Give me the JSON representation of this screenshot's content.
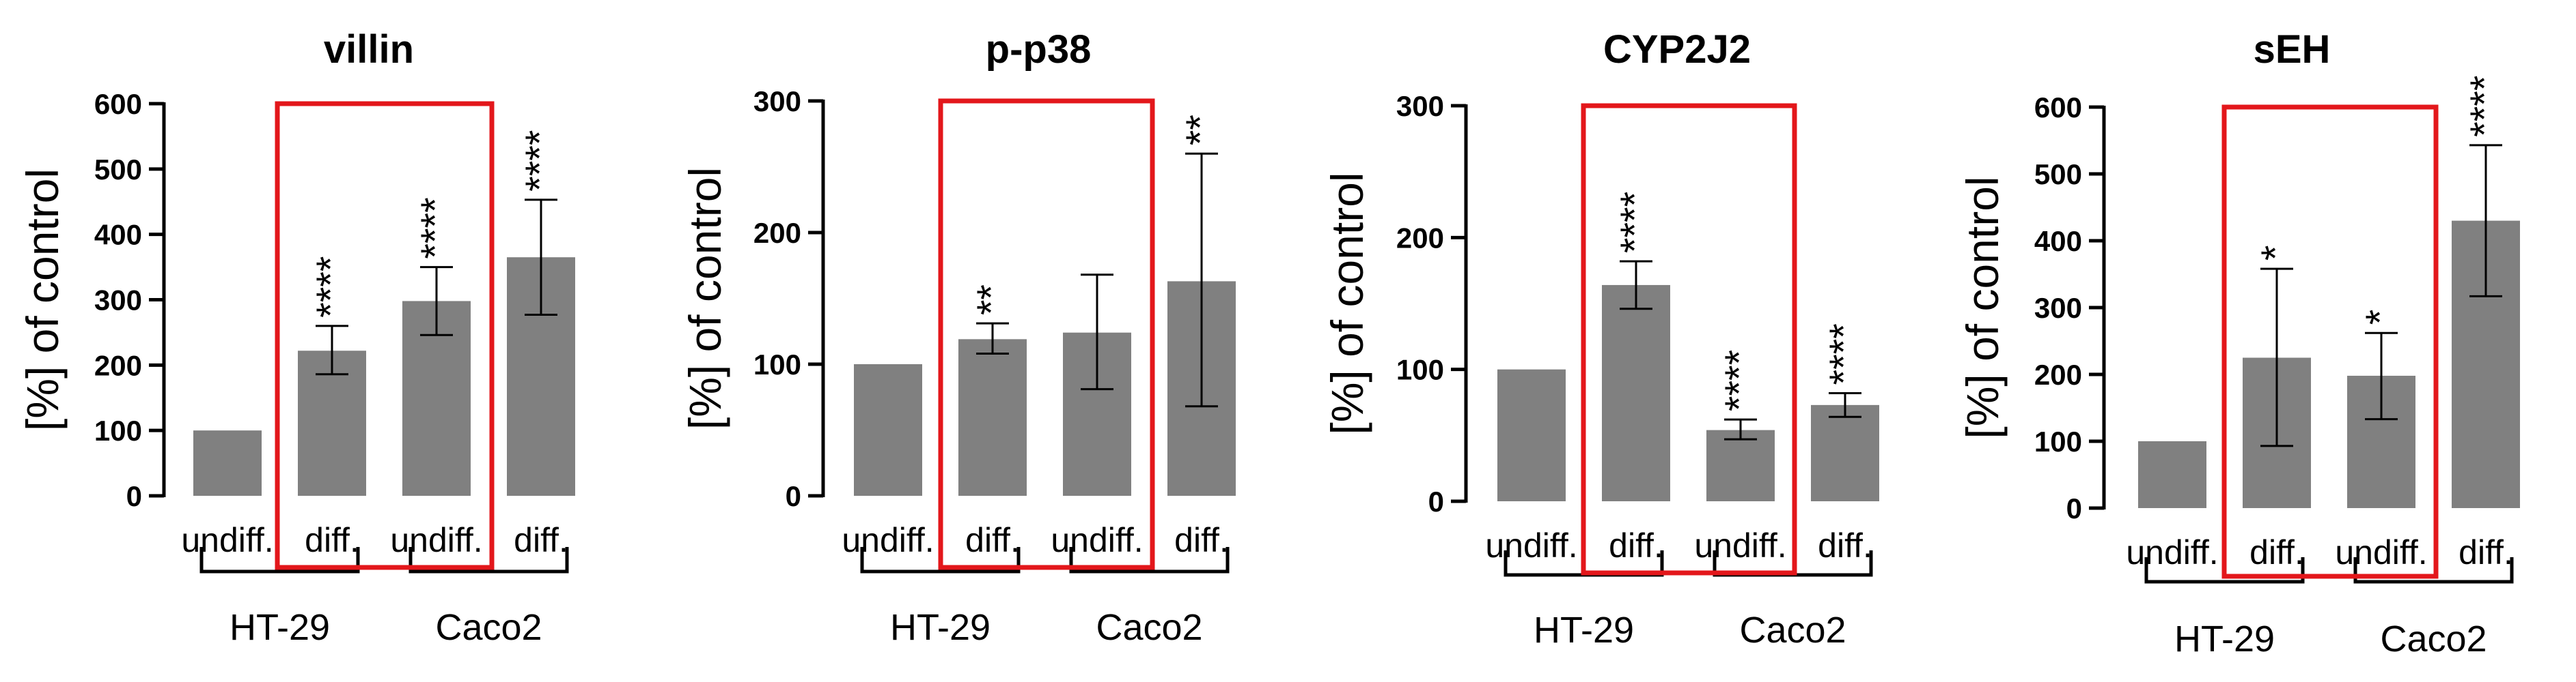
{
  "chart_data": [
    {
      "type": "bar",
      "title": "villin",
      "ylabel": "[%] of control",
      "ylim": [
        0,
        600
      ],
      "yticks": [
        "0",
        "100",
        "200",
        "300",
        "400",
        "500",
        "600"
      ],
      "categories": [
        "undiff.",
        "diff.",
        "undiff.",
        "diff."
      ],
      "groups": [
        {
          "name": "HT-29",
          "span": [
            0,
            1
          ]
        },
        {
          "name": "Caco2",
          "span": [
            2,
            3
          ]
        }
      ],
      "values": [
        100,
        222,
        298,
        365
      ],
      "errors": [
        [
          100,
          100
        ],
        [
          186,
          260
        ],
        [
          246,
          350
        ],
        [
          277,
          453
        ]
      ],
      "significance": [
        "",
        "****",
        "****",
        "****"
      ],
      "highlight": [
        1,
        2
      ]
    },
    {
      "type": "bar",
      "title": "p-p38",
      "ylabel": "[%] of control",
      "ylim": [
        0,
        300
      ],
      "yticks": [
        "0",
        "100",
        "200",
        "300"
      ],
      "categories": [
        "undiff.",
        "diff.",
        "undiff.",
        "diff."
      ],
      "groups": [
        {
          "name": "HT-29",
          "span": [
            0,
            1
          ]
        },
        {
          "name": "Caco2",
          "span": [
            2,
            3
          ]
        }
      ],
      "values": [
        100,
        119,
        124,
        163
      ],
      "errors": [
        [
          100,
          100
        ],
        [
          108,
          131
        ],
        [
          81,
          168
        ],
        [
          68,
          260
        ]
      ],
      "significance": [
        "",
        "**",
        "",
        "**"
      ],
      "highlight": [
        1,
        2
      ]
    },
    {
      "type": "bar",
      "title": "CYP2J2",
      "ylabel": "[%] of control",
      "ylim": [
        0,
        300
      ],
      "yticks": [
        "0",
        "100",
        "200",
        "300"
      ],
      "categories": [
        "undiff.",
        "diff.",
        "undiff.",
        "diff."
      ],
      "groups": [
        {
          "name": "HT-29",
          "span": [
            0,
            1
          ]
        },
        {
          "name": "Caco2",
          "span": [
            2,
            3
          ]
        }
      ],
      "values": [
        100,
        164,
        54,
        73
      ],
      "errors": [
        [
          100,
          100
        ],
        [
          146,
          182
        ],
        [
          47,
          62
        ],
        [
          64,
          82
        ]
      ],
      "significance": [
        "",
        "****",
        "****",
        "****"
      ],
      "highlight": [
        1,
        2
      ]
    },
    {
      "type": "bar",
      "title": "sEH",
      "ylabel": "[%] of control",
      "ylim": [
        0,
        600
      ],
      "yticks": [
        "0",
        "100",
        "200",
        "300",
        "400",
        "500",
        "600"
      ],
      "categories": [
        "undiff.",
        "diff.",
        "undiff.",
        "diff."
      ],
      "groups": [
        {
          "name": "HT-29",
          "span": [
            0,
            1
          ]
        },
        {
          "name": "Caco2",
          "span": [
            2,
            3
          ]
        }
      ],
      "values": [
        100,
        225,
        198,
        430
      ],
      "errors": [
        [
          100,
          100
        ],
        [
          93,
          358
        ],
        [
          133,
          262
        ],
        [
          317,
          543
        ]
      ],
      "significance": [
        "",
        "*",
        "*",
        "****"
      ],
      "highlight": [
        1,
        2
      ]
    }
  ],
  "colors": {
    "bar": "#808080",
    "axis": "#000000",
    "highlight": "#e3171b"
  }
}
